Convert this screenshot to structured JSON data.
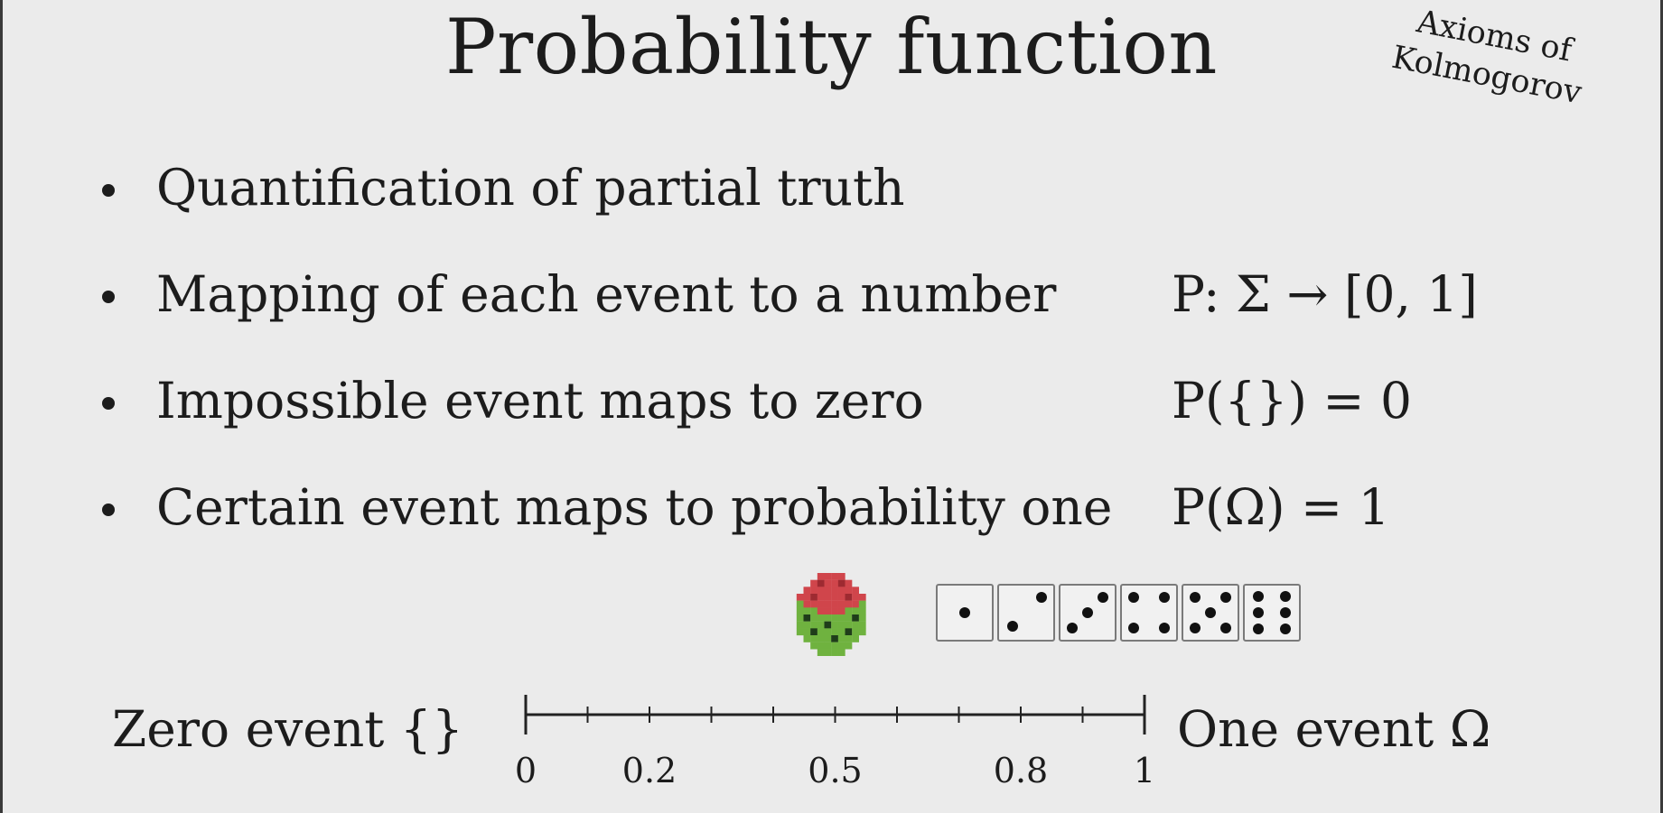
{
  "title": "Probability function",
  "side_note": {
    "line1": "Axioms of",
    "line2": "Kolmogorov"
  },
  "bullets": [
    {
      "text": "Quantification of partial truth",
      "math": ""
    },
    {
      "text": "Mapping of each event to a number",
      "math": "P: Σ → [0, 1]"
    },
    {
      "text": "Impossible event maps to zero",
      "math": "P({}) = 0"
    },
    {
      "text": "Certain event maps to probability one",
      "math": "P(Ω) = 1"
    }
  ],
  "scale": {
    "left_label": "Zero event {}",
    "right_label": "One event Ω",
    "tick_labels": [
      {
        "text": "0",
        "value": 0
      },
      {
        "text": "0.2",
        "value": 0.2
      },
      {
        "text": "0.5",
        "value": 0.5
      },
      {
        "text": "0.8",
        "value": 0.8
      },
      {
        "text": "1",
        "value": 1
      }
    ],
    "minor_tick_values": [
      0,
      0.1,
      0.2,
      0.3,
      0.4,
      0.5,
      0.6,
      0.7,
      0.8,
      0.9,
      1
    ]
  },
  "dice": {
    "pixel_die_colors": {
      "top": "#d0454b",
      "body": "#6fb23f",
      "pip": "#1f3d1a"
    },
    "faces": [
      1,
      2,
      3,
      4,
      5,
      6
    ]
  },
  "colors": {
    "background": "#ebebeb",
    "text": "#1c1c1c"
  }
}
